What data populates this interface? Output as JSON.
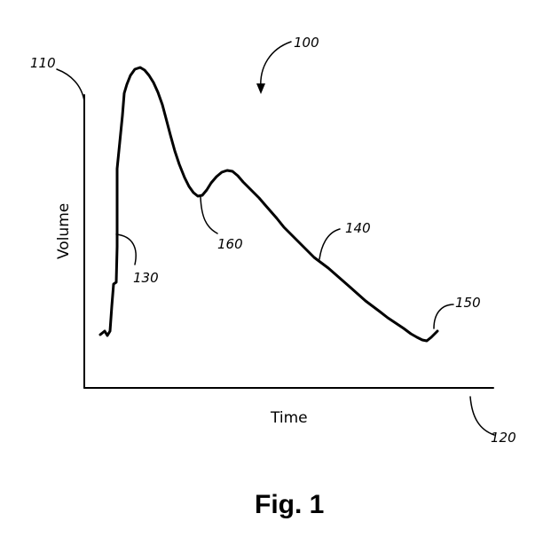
{
  "figure": {
    "caption": "Fig. 1",
    "x_axis_label": "Time",
    "y_axis_label": "Volume",
    "ref_labels": {
      "figure": "100",
      "y_axis": "110",
      "x_axis": "120",
      "rise": "130",
      "decay": "140",
      "end": "150",
      "notch": "160"
    }
  }
}
